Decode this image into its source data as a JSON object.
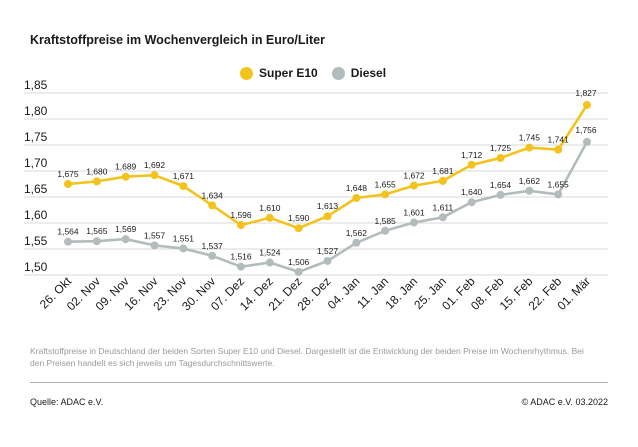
{
  "title": "Kraftstoffpreise im Wochenvergleich in Euro/Liter",
  "colors": {
    "super": "#f2c31c",
    "diesel": "#b3bcbd",
    "grid": "#d9d9d9"
  },
  "caption": "Kraftstoffpreise in Deutschland der beiden Sorten Super E10 und Diesel. Dargestellt ist die Entwicklung der beiden Preise im Wochenrhythmus. Bei den Preisen handelt es sich jeweils um Tagesdurchschnittswerte.",
  "source": "Quelle: ADAC e.V.",
  "copyright": "© ADAC e.V. 03.2022",
  "chart_data": {
    "type": "line",
    "title": "Kraftstoffpreise im Wochenvergleich in Euro/Liter",
    "xlabel": "",
    "ylabel": "",
    "legend_position": "top-center",
    "grid": true,
    "ylim": [
      1.5,
      1.85
    ],
    "yticks": [
      "1,85",
      "1,80",
      "1,75",
      "1,70",
      "1,65",
      "1,60",
      "1,55",
      "1,50"
    ],
    "ytick_values": [
      1.85,
      1.8,
      1.75,
      1.7,
      1.65,
      1.6,
      1.55,
      1.5
    ],
    "categories": [
      "26. Okt",
      "02. Nov",
      "09. Nov",
      "16. Nov",
      "23. Nov",
      "30. Nov",
      "07. Dez",
      "14. Dez",
      "21. Dez",
      "28. Dez",
      "04. Jan",
      "11. Jan",
      "18. Jan",
      "25. Jan",
      "01. Feb",
      "08. Feb",
      "15. Feb",
      "22. Feb",
      "01. Mär"
    ],
    "series": [
      {
        "name": "Super E10",
        "color": "#f2c31c",
        "values": [
          1.675,
          1.68,
          1.689,
          1.692,
          1.671,
          1.634,
          1.596,
          1.61,
          1.59,
          1.613,
          1.648,
          1.655,
          1.672,
          1.681,
          1.712,
          1.725,
          1.745,
          1.741,
          1.827
        ],
        "labels": [
          "1,675",
          "1,680",
          "1,689",
          "1,692",
          "1,671",
          "1,634",
          "1,596",
          "1,610",
          "1,590",
          "1,613",
          "1,648",
          "1,655",
          "1,672",
          "1,681",
          "1,712",
          "1,725",
          "1,745",
          "1,741",
          "1,827"
        ]
      },
      {
        "name": "Diesel",
        "color": "#b3bcbd",
        "values": [
          1.564,
          1.565,
          1.569,
          1.557,
          1.551,
          1.537,
          1.516,
          1.524,
          1.506,
          1.527,
          1.562,
          1.585,
          1.601,
          1.611,
          1.64,
          1.654,
          1.662,
          1.655,
          1.756
        ],
        "labels": [
          "1,564",
          "1,565",
          "1,569",
          "1,557",
          "1,551",
          "1,537",
          "1,516",
          "1,524",
          "1,506",
          "1,527",
          "1,562",
          "1,585",
          "1,601",
          "1,611",
          "1,640",
          "1,654",
          "1,662",
          "1,655",
          "1,756"
        ]
      }
    ]
  }
}
